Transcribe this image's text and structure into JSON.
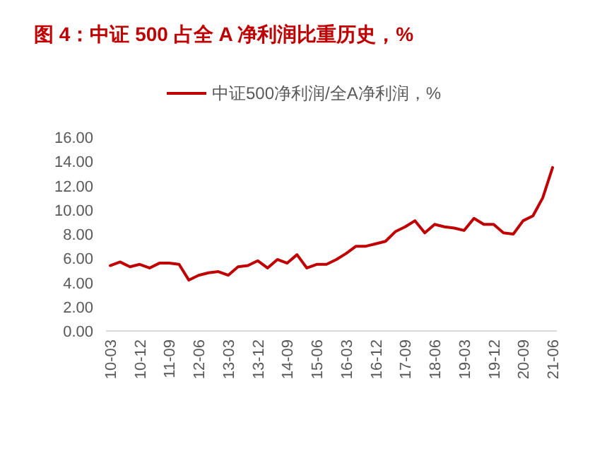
{
  "chart_data": {
    "type": "line",
    "title": "图 4：中证 500 占全 A 净利润比重历史，%",
    "legend": "top",
    "categories": [
      "10-03",
      null,
      null,
      "10-12",
      null,
      null,
      "11-09",
      null,
      null,
      "12-06",
      null,
      null,
      "13-03",
      null,
      null,
      "13-12",
      null,
      null,
      "14-09",
      null,
      null,
      "15-06",
      null,
      null,
      "16-03",
      null,
      null,
      "16-12",
      null,
      null,
      "17-09",
      null,
      null,
      "18-06",
      null,
      null,
      "19-03",
      null,
      null,
      "19-12",
      null,
      null,
      "20-09",
      null,
      null,
      "21-06"
    ],
    "series": [
      {
        "name": "中证500净利润/全A净利润，%",
        "color": "#c00000",
        "values": [
          5.4,
          5.7,
          5.3,
          5.5,
          5.2,
          5.6,
          5.6,
          5.5,
          4.2,
          4.6,
          4.8,
          4.9,
          4.6,
          5.3,
          5.4,
          5.8,
          5.2,
          5.9,
          5.6,
          6.3,
          5.2,
          5.5,
          5.5,
          5.9,
          6.4,
          7.0,
          7.0,
          7.2,
          7.4,
          8.2,
          8.6,
          9.1,
          8.1,
          8.8,
          8.6,
          8.5,
          8.3,
          9.3,
          8.8,
          8.8,
          8.1,
          8.0,
          9.1,
          9.5,
          11.0,
          13.5
        ]
      }
    ],
    "ylim": [
      0,
      16
    ],
    "yticks": [
      {
        "value": 0,
        "label": "0.00"
      },
      {
        "value": 2,
        "label": "2.00"
      },
      {
        "value": 4,
        "label": "4.00"
      },
      {
        "value": 6,
        "label": "6.00"
      },
      {
        "value": 8,
        "label": "8.00"
      },
      {
        "value": 10,
        "label": "10.00"
      },
      {
        "value": 12,
        "label": "12.00"
      },
      {
        "value": 14,
        "label": "14.00"
      },
      {
        "value": 16,
        "label": "16.00"
      }
    ]
  }
}
